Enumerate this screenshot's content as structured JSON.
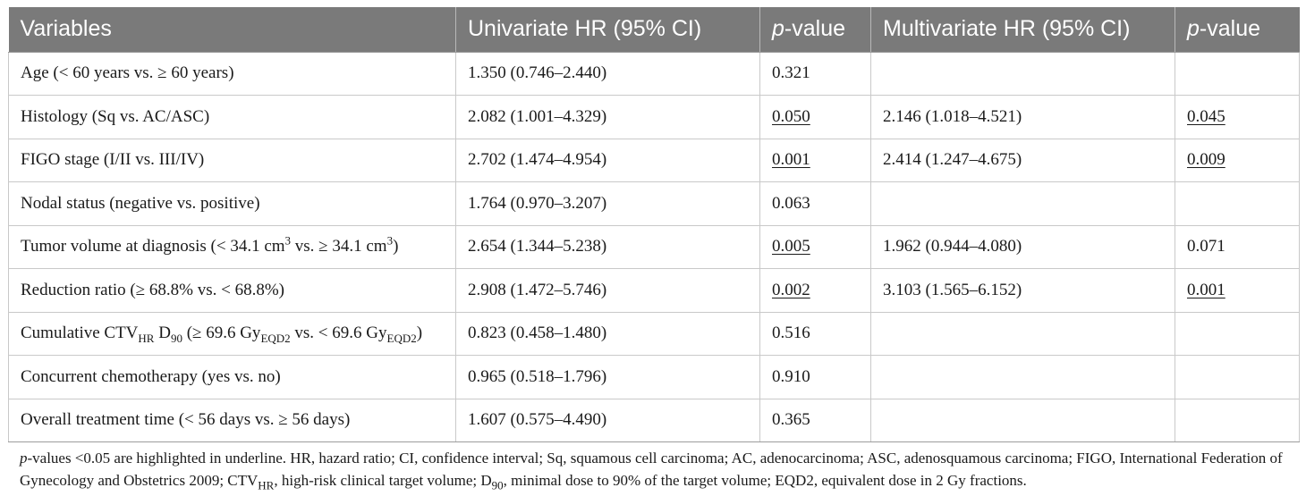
{
  "table": {
    "headers": {
      "variables": "Variables",
      "univariate": "Univariate HR (95% CI)",
      "p_uni_prefix": "p",
      "p_uni_suffix": "-value",
      "multivariate": "Multivariate HR (95% CI)",
      "p_multi_prefix": "p",
      "p_multi_suffix": "-value"
    },
    "rows": [
      {
        "variable": "Age (< 60 years vs. ≥ 60 years)",
        "uni_hr": "1.350 (0.746–2.440)",
        "uni_p": "0.321",
        "multi_hr": "",
        "multi_p": ""
      },
      {
        "variable": "Histology (Sq vs. AC/ASC)",
        "uni_hr": "2.082 (1.001–4.329)",
        "uni_p": "0.050",
        "multi_hr": "2.146 (1.018–4.521)",
        "multi_p": "0.045"
      },
      {
        "variable": "FIGO stage (I/II vs. III/IV)",
        "uni_hr": "2.702 (1.474–4.954)",
        "uni_p": "0.001",
        "multi_hr": "2.414 (1.247–4.675)",
        "multi_p": "0.009"
      },
      {
        "variable": "Nodal status (negative vs. positive)",
        "uni_hr": "1.764 (0.970–3.207)",
        "uni_p": "0.063",
        "multi_hr": "",
        "multi_p": ""
      },
      {
        "variable_parts": {
          "a": "Tumor volume at diagnosis (< 34.1 cm",
          "sup1": "3",
          "b": " vs. ≥ 34.1 cm",
          "sup2": "3",
          "c": ")"
        },
        "uni_hr": "2.654 (1.344–5.238)",
        "uni_p": "0.005",
        "multi_hr": "1.962 (0.944–4.080)",
        "multi_p": "0.071"
      },
      {
        "variable": "Reduction ratio (≥ 68.8% vs. < 68.8%)",
        "uni_hr": "2.908 (1.472–5.746)",
        "uni_p": "0.002",
        "multi_hr": "3.103 (1.565–6.152)",
        "multi_p": "0.001"
      },
      {
        "variable_parts": {
          "a": "Cumulative CTV",
          "sub1": "HR",
          "b": " D",
          "sub2": "90",
          "c": " (≥ 69.6 Gy",
          "sub3": "EQD2",
          "d": " vs. < 69.6 Gy",
          "sub4": "EQD2",
          "e": ")"
        },
        "uni_hr": "0.823 (0.458–1.480)",
        "uni_p": "0.516",
        "multi_hr": "",
        "multi_p": ""
      },
      {
        "variable": "Concurrent chemotherapy (yes vs. no)",
        "uni_hr": "0.965 (0.518–1.796)",
        "uni_p": "0.910",
        "multi_hr": "",
        "multi_p": ""
      },
      {
        "variable": "Overall treatment time (< 56 days vs. ≥ 56 days)",
        "uni_hr": "1.607 (0.575–4.490)",
        "uni_p": "0.365",
        "multi_hr": "",
        "multi_p": ""
      }
    ]
  },
  "footnote": {
    "p_italic": "p",
    "part1": "-values <0.05 are highlighted in underline. HR, hazard ratio; CI, confidence interval; Sq, squamous cell carcinoma; AC, adenocarcinoma; ASC, adenosquamous carcinoma; FIGO, International Federation of Gynecology and Obstetrics 2009; CTV",
    "sub_hr": "HR",
    "part2": ", high-risk clinical target volume; D",
    "sub_90": "90",
    "part3": ", minimal dose to 90% of the target volume; EQD2, equivalent dose in 2 Gy fractions."
  },
  "colors": {
    "header_bg": "#7a7a7a",
    "header_text": "#ffffff",
    "grid_line": "#c9c9c9"
  }
}
